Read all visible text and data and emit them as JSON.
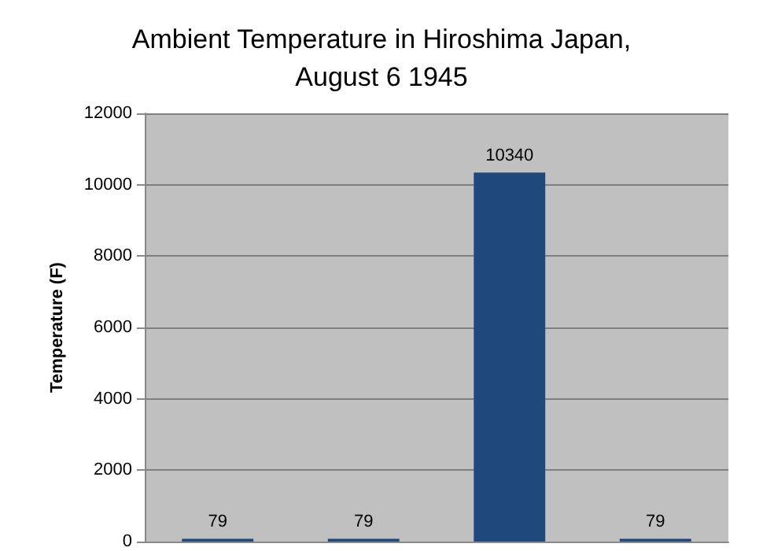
{
  "chart_data": {
    "type": "bar",
    "title": "Ambient Temperature in Hiroshima Japan,\nAugust 6 1945",
    "ylabel": "Temperature (F)",
    "categories": [
      null,
      null,
      null,
      null
    ],
    "values": [
      79,
      79,
      10340,
      79
    ],
    "color": "#1f497d",
    "ylim": [
      0,
      12000
    ],
    "yticks": [
      0,
      2000,
      4000,
      6000,
      8000,
      10000,
      12000
    ],
    "grid": "y",
    "data_labels": true,
    "tick_labels": "y"
  }
}
